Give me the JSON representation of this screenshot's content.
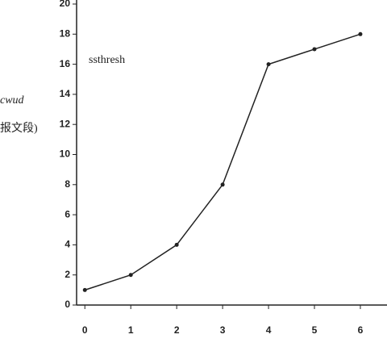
{
  "chart_data": {
    "type": "line",
    "annotation": "ssthresh",
    "y_label": "cwud",
    "y_label_unit": "报文段)",
    "x": [
      0,
      1,
      2,
      3,
      4,
      5,
      6
    ],
    "values": [
      1,
      2,
      4,
      8,
      16,
      17,
      18
    ],
    "color": "#222222",
    "xlim": [
      -0.18,
      6.58
    ],
    "xticks": [
      0,
      1,
      2,
      3,
      4,
      5,
      6
    ],
    "ylim": [
      0,
      20
    ],
    "yticks": [
      0,
      2,
      4,
      6,
      8,
      10,
      12,
      14,
      16,
      18,
      20
    ]
  }
}
